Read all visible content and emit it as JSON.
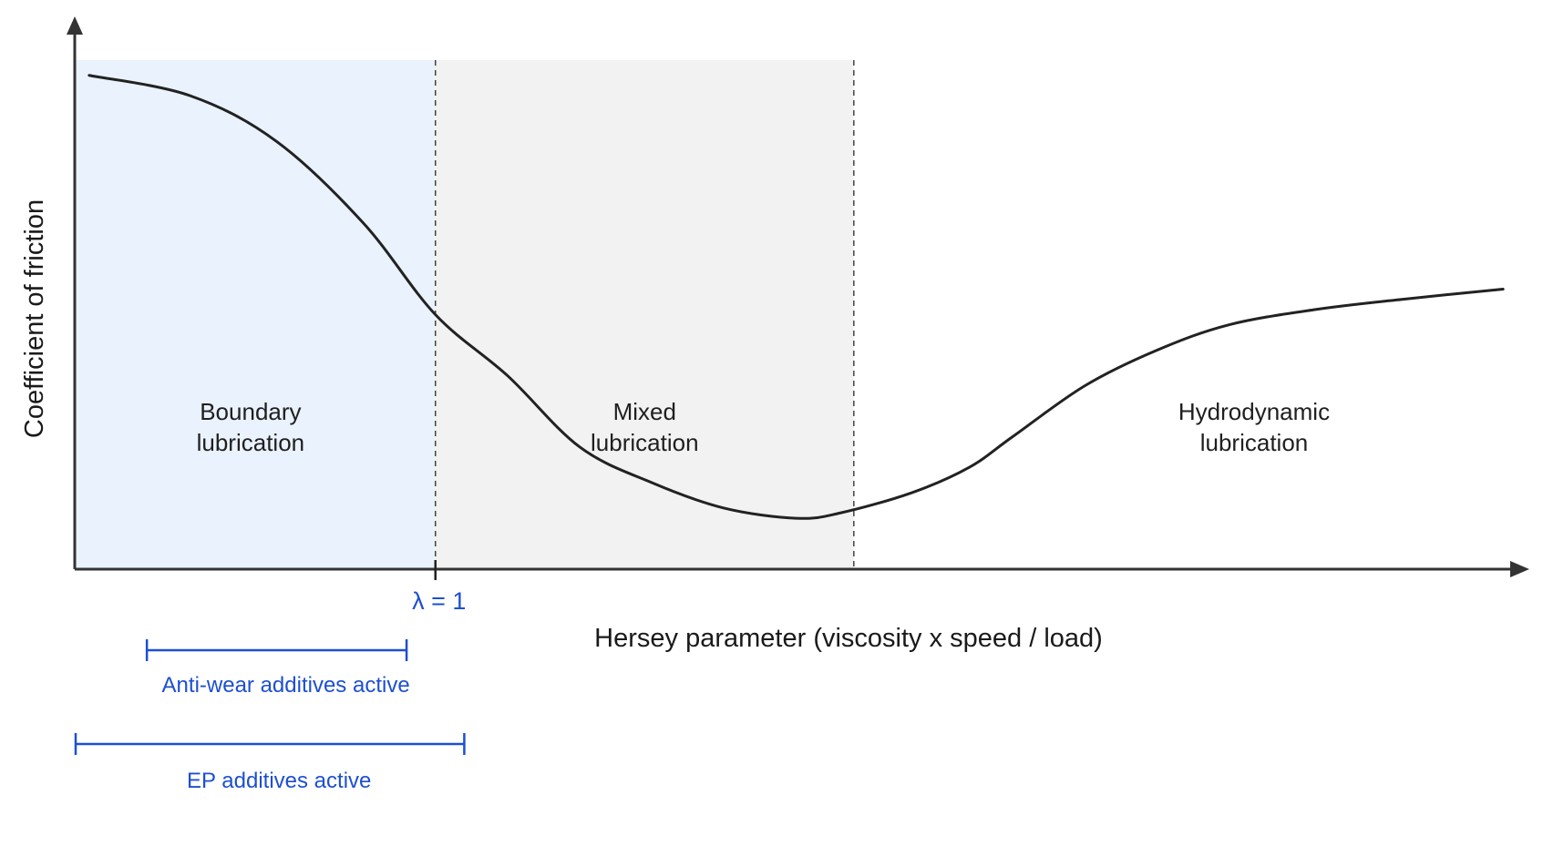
{
  "chart_data": {
    "type": "line",
    "title": "",
    "xlabel": "Hersey parameter (viscosity x speed / load)",
    "ylabel": "Coefficient of friction",
    "grid": false,
    "legend": "none",
    "xlim": [
      0,
      100
    ],
    "ylim": [
      0,
      100
    ],
    "series": [
      {
        "x": [
          1,
          8,
          14,
          20,
          25,
          30,
          35,
          40,
          45,
          50,
          53,
          58,
          62,
          65,
          70,
          75,
          80,
          86,
          92,
          99
        ],
        "y": [
          97,
          93,
          84,
          68,
          50,
          38,
          24,
          17,
          12,
          10,
          11,
          15,
          20,
          26,
          36,
          43,
          48,
          51,
          53,
          55
        ]
      }
    ],
    "regions": [
      {
        "label_lines": [
          "Boundary",
          "lubrication"
        ],
        "from": 0,
        "to": 25,
        "color": "#eaf2fd"
      },
      {
        "label_lines": [
          "Mixed",
          "lubrication"
        ],
        "from": 25,
        "to": 54,
        "color": "#f2f2f2"
      },
      {
        "label_lines": [
          "Hydrodynamic",
          "lubrication"
        ],
        "from": 54,
        "to": 100,
        "color": "#ffffff"
      }
    ],
    "markers": [
      {
        "x": 25,
        "label": "λ = 1"
      }
    ],
    "ranges": [
      {
        "label": "Anti-wear additives active",
        "from": 5,
        "to": 23
      },
      {
        "label": "EP additives active",
        "from": 0,
        "to": 27
      }
    ],
    "colors": {
      "curve": "#222222",
      "axis": "#333333",
      "annotation": "#1d4fd0"
    }
  }
}
